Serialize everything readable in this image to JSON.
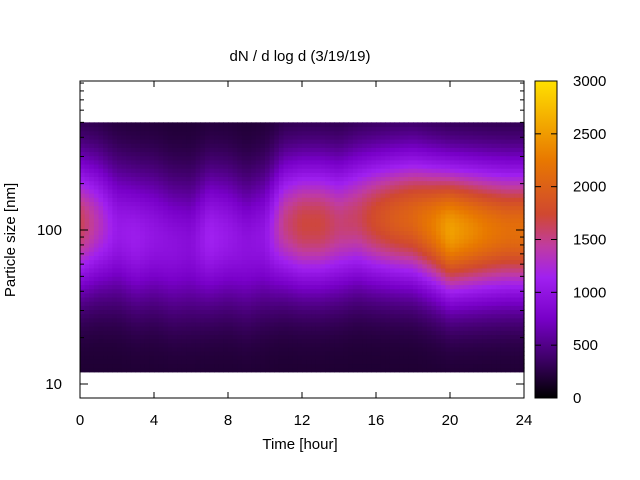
{
  "chart_data": {
    "type": "heatmap",
    "title": "dN / d log d (3/19/19)",
    "xlabel": "Time [hour]",
    "ylabel": "Particle size [nm]",
    "xlim": [
      0,
      24
    ],
    "x_ticks": [
      0,
      4,
      8,
      12,
      16,
      20,
      24
    ],
    "y_scale": "log",
    "y_ticks": [
      10,
      100
    ],
    "y_range_nm": [
      12,
      500
    ],
    "colorbar": {
      "label_ticks": [
        0,
        500,
        1000,
        1500,
        2000,
        2500,
        3000
      ],
      "range": [
        0,
        3000
      ],
      "colormap": [
        "#000000",
        "#3c0064",
        "#7800c8",
        "#a020f0",
        "#c03ca0",
        "#d04830",
        "#e87800",
        "#ffe000"
      ]
    },
    "time_profile_description_points": {
      "x": [
        0,
        1,
        2,
        3,
        4,
        5,
        6,
        7,
        8,
        9,
        10,
        11,
        12,
        13,
        14,
        15,
        16,
        17,
        18,
        19,
        20,
        21,
        22,
        23,
        24
      ],
      "peak_value": [
        1650,
        1350,
        1050,
        1100,
        1000,
        950,
        900,
        1150,
        1050,
        950,
        1000,
        1500,
        1700,
        1700,
        1550,
        1600,
        1800,
        1950,
        2050,
        2250,
        2550,
        2400,
        2250,
        2150,
        2150
      ],
      "peak_size_nm": [
        110,
        110,
        100,
        90,
        90,
        80,
        80,
        90,
        90,
        80,
        90,
        110,
        110,
        110,
        110,
        120,
        120,
        120,
        120,
        110,
        100,
        100,
        100,
        100,
        100
      ]
    }
  }
}
